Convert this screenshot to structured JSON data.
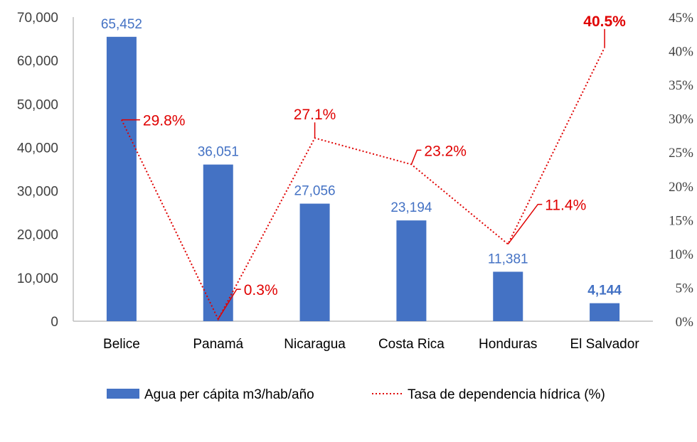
{
  "chart_data": {
    "type": "bar",
    "categories": [
      "Belice",
      "Panamá",
      "Nicaragua",
      "Costa Rica",
      "Honduras",
      "El Salvador"
    ],
    "series": [
      {
        "name": "Agua per cápita m3/hab/año",
        "kind": "bar",
        "axis": "left",
        "color": "#4472C4",
        "values": [
          65452,
          36051,
          27056,
          23194,
          11381,
          4144
        ],
        "labels": [
          "65,452",
          "36,051",
          "27,056",
          "23,194",
          "11,381",
          "4,144"
        ]
      },
      {
        "name": "Tasa de dependencia hídrica (%)",
        "kind": "line",
        "style": "dotted",
        "axis": "right",
        "color": "#E00000",
        "values": [
          29.8,
          0.3,
          27.1,
          23.2,
          11.4,
          40.5
        ],
        "labels": [
          "29.8%",
          "0.3%",
          "27.1%",
          "23.2%",
          "11.4%",
          "40.5%"
        ]
      }
    ],
    "y_left": {
      "ylim": [
        0,
        70000
      ],
      "ticks": [
        "0",
        "10,000",
        "20,000",
        "30,000",
        "40,000",
        "50,000",
        "60,000",
        "70,000"
      ]
    },
    "y_right": {
      "ylim": [
        0,
        45
      ],
      "ticks": [
        "0%",
        "5%",
        "10%",
        "15%",
        "20%",
        "25%",
        "30%",
        "35%",
        "40%",
        "45%"
      ]
    },
    "legend_position": "bottom",
    "grid": false
  }
}
